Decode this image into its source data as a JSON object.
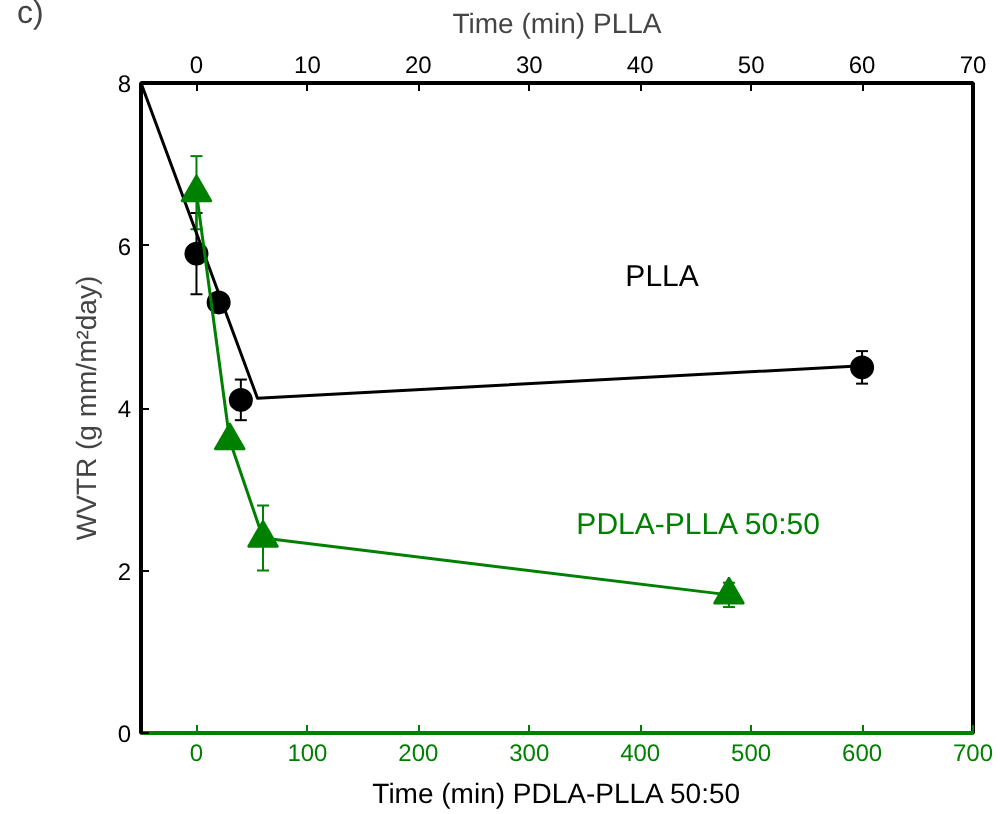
{
  "chart_data": {
    "type": "line",
    "xlabel": "Time (min) PDLA-PLLA 50:50",
    "x2label": "Time (min) PLLA",
    "ylabel": "WVTR (g mm/m²day)",
    "xlim": [
      -50,
      700
    ],
    "xticks": [
      0,
      100,
      200,
      300,
      400,
      500,
      600,
      700
    ],
    "x2lim": [
      -5,
      70
    ],
    "x2ticks": [
      0,
      10,
      20,
      30,
      40,
      50,
      60,
      70
    ],
    "ylim": [
      0,
      8
    ],
    "yticks": [
      0,
      2,
      4,
      6,
      8
    ],
    "grid": false,
    "legend": false,
    "series": [
      {
        "type": "scatter",
        "name": "PLLA",
        "axis": "x2",
        "color": "#000000",
        "marker": "circle",
        "x": [
          0,
          2,
          4,
          60
        ],
        "values": [
          5.9,
          5.3,
          4.1,
          4.5
        ],
        "errors": [
          0.5,
          null,
          0.25,
          0.2
        ]
      },
      {
        "axis": "x2",
        "color": "#000000",
        "marker": "none",
        "x": [
          -5,
          5.5,
          60
        ],
        "values": [
          8,
          4.12,
          4.52
        ]
      },
      {
        "name": "PDLA-PLLA 50:50",
        "color": "#008000",
        "marker": "triangle",
        "x": [
          0,
          30,
          60,
          480
        ],
        "values": [
          6.65,
          3.6,
          2.4,
          1.7
        ],
        "errors": [
          0.45,
          null,
          0.4,
          0.15
        ]
      }
    ],
    "annotations": [
      "c)"
    ]
  }
}
